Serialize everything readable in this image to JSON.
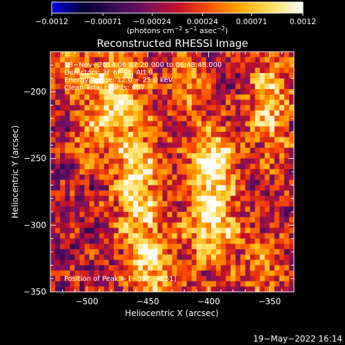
{
  "chart_data": {
    "type": "heatmap",
    "title": "Reconstructed RHESSI Image",
    "xlabel": "Heliocentric X (arcsec)",
    "ylabel": "Heliocentric Y (arcsec)",
    "xlim": [
      -530,
      -330
    ],
    "ylim": [
      -350,
      -170
    ],
    "x_ticks": [
      -500,
      -450,
      -400,
      -350
    ],
    "x_tick_labels": [
      "−500",
      "−450",
      "−400",
      "−350"
    ],
    "y_ticks": [
      -200,
      -250,
      -300,
      -350
    ],
    "y_tick_labels": [
      "−200",
      "−250",
      "−300",
      "−350"
    ],
    "colorbar": {
      "range": [
        -0.0012,
        0.0012
      ],
      "ticks": [
        -0.0012,
        -0.00071,
        -0.00024,
        0.00024,
        0.00071,
        0.0012
      ],
      "tick_labels": [
        "−0.0012",
        "−0.00071",
        "−0.00024",
        "0.00024",
        "0.00071",
        "0.0012"
      ],
      "label_main": "(photons cm",
      "label_sup1": "−2",
      "label_mid": " s",
      "label_sup2": "−1",
      "label_end": " asec",
      "label_sup3": "−2",
      "label_close": ")"
    },
    "colormap_stops": [
      "#0000e6",
      "#000033",
      "#3a0a5a",
      "#7a1060",
      "#c0102a",
      "#ff5000",
      "#ffa800",
      "#ffe060",
      "#ffffff"
    ],
    "annotations": [
      "18−Nov−2014 06:47:20.000 to 06:48:48.000",
      "Detectors: 3F 6F 9F, Att 0",
      "Energy Range: 12.0 − 25.0 keV",
      "Clean    Total counts: 637."
    ],
    "peak_label": "Position of Peak = [−397, −251]",
    "peak_position": [
      -397,
      -251
    ],
    "sources": [
      {
        "x": -478,
        "y": -200,
        "sx": 16,
        "sy": 26,
        "amp": 0.00105
      },
      {
        "x": -458,
        "y": -268,
        "sx": 14,
        "sy": 30,
        "amp": 0.0011
      },
      {
        "x": -447,
        "y": -330,
        "sx": 14,
        "sy": 22,
        "amp": 0.00095
      },
      {
        "x": -397,
        "y": -251,
        "sx": 13,
        "sy": 18,
        "amp": 0.0012
      },
      {
        "x": -398,
        "y": -300,
        "sx": 15,
        "sy": 24,
        "amp": 0.0011
      },
      {
        "x": -350,
        "y": -210,
        "sx": 12,
        "sy": 30,
        "amp": 0.0009
      },
      {
        "x": -418,
        "y": -195,
        "sx": 10,
        "sy": 16,
        "amp": 0.0007
      },
      {
        "x": -515,
        "y": -185,
        "sx": 10,
        "sy": 12,
        "amp": 0.0006
      },
      {
        "x": -500,
        "y": -240,
        "sx": 9,
        "sy": 14,
        "amp": 0.0005
      },
      {
        "x": -355,
        "y": -330,
        "sx": 12,
        "sy": 18,
        "amp": 0.0006
      }
    ]
  },
  "footer": {
    "date": "19−May−2022 16:14"
  }
}
